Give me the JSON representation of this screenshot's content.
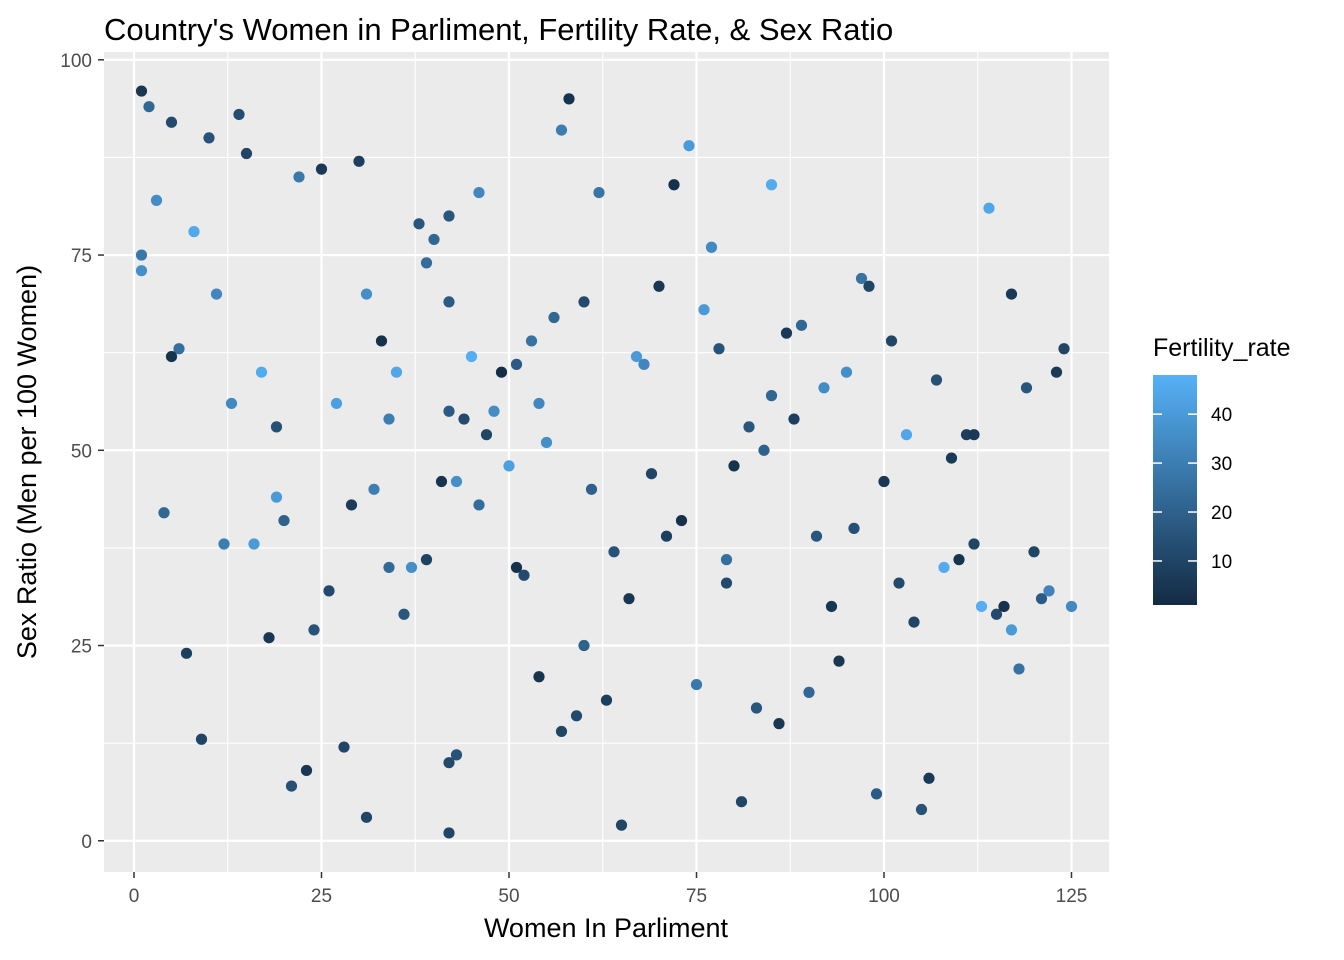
{
  "chart_data": {
    "type": "scatter",
    "title": "Country's Women in Parliment, Fertility Rate, & Sex Ratio",
    "xlabel": "Women In Parliment",
    "ylabel": "Sex Ratio (Men per 100 Women)",
    "xlim": [
      -4,
      130
    ],
    "ylim": [
      -4,
      101
    ],
    "x_ticks": [
      0,
      25,
      50,
      75,
      100,
      125
    ],
    "x_tick_labels": [
      "0",
      "25",
      "50",
      "75",
      "100",
      "125"
    ],
    "y_ticks": [
      0,
      25,
      50,
      75,
      100
    ],
    "y_tick_labels": [
      "0",
      "25",
      "50",
      "75",
      "100"
    ],
    "grid": true,
    "legend": {
      "title": "Fertility_rate",
      "placement": "right",
      "min": 1,
      "max": 48,
      "breaks": [
        10,
        20,
        30,
        40
      ],
      "break_labels": [
        "10",
        "20",
        "30",
        "40"
      ],
      "low_color": "#132B43",
      "high_color": "#56B1F7"
    },
    "points": [
      [
        1,
        96,
        5
      ],
      [
        2,
        94,
        22
      ],
      [
        5,
        92,
        12
      ],
      [
        10,
        90,
        15
      ],
      [
        14,
        93,
        13
      ],
      [
        15,
        88,
        10
      ],
      [
        25,
        86,
        6
      ],
      [
        30,
        87,
        8
      ],
      [
        1,
        75,
        28
      ],
      [
        1,
        73,
        36
      ],
      [
        3,
        82,
        35
      ],
      [
        8,
        78,
        45
      ],
      [
        11,
        70,
        33
      ],
      [
        6,
        63,
        25
      ],
      [
        5,
        62,
        4
      ],
      [
        22,
        85,
        28
      ],
      [
        17,
        60,
        46
      ],
      [
        13,
        56,
        34
      ],
      [
        19,
        53,
        14
      ],
      [
        4,
        42,
        22
      ],
      [
        12,
        38,
        30
      ],
      [
        16,
        38,
        40
      ],
      [
        19,
        44,
        40
      ],
      [
        20,
        41,
        20
      ],
      [
        7,
        24,
        8
      ],
      [
        9,
        13,
        10
      ],
      [
        18,
        26,
        5
      ],
      [
        21,
        7,
        14
      ],
      [
        23,
        9,
        5
      ],
      [
        24,
        27,
        15
      ],
      [
        26,
        32,
        12
      ],
      [
        28,
        12,
        10
      ],
      [
        29,
        43,
        7
      ],
      [
        27,
        56,
        42
      ],
      [
        31,
        70,
        36
      ],
      [
        33,
        64,
        3
      ],
      [
        35,
        60,
        44
      ],
      [
        34,
        54,
        30
      ],
      [
        32,
        45,
        30
      ],
      [
        34,
        35,
        23
      ],
      [
        37,
        35,
        36
      ],
      [
        36,
        29,
        16
      ],
      [
        31,
        3,
        10
      ],
      [
        38,
        79,
        16
      ],
      [
        40,
        77,
        22
      ],
      [
        39,
        74,
        24
      ],
      [
        42,
        80,
        16
      ],
      [
        42,
        69,
        18
      ],
      [
        42,
        55,
        18
      ],
      [
        44,
        54,
        12
      ],
      [
        41,
        46,
        4
      ],
      [
        43,
        46,
        36
      ],
      [
        39,
        36,
        9
      ],
      [
        42,
        10,
        12
      ],
      [
        43,
        11,
        15
      ],
      [
        42,
        1,
        10
      ],
      [
        46,
        83,
        33
      ],
      [
        45,
        62,
        47
      ],
      [
        48,
        55,
        35
      ],
      [
        47,
        52,
        10
      ],
      [
        49,
        60,
        2
      ],
      [
        51,
        61,
        18
      ],
      [
        50,
        48,
        42
      ],
      [
        46,
        43,
        24
      ],
      [
        51,
        35,
        3
      ],
      [
        52,
        34,
        12
      ],
      [
        53,
        64,
        26
      ],
      [
        56,
        67,
        22
      ],
      [
        54,
        56,
        33
      ],
      [
        55,
        51,
        36
      ],
      [
        57,
        91,
        30
      ],
      [
        58,
        95,
        4
      ],
      [
        60,
        69,
        12
      ],
      [
        61,
        45,
        20
      ],
      [
        64,
        37,
        15
      ],
      [
        66,
        31,
        5
      ],
      [
        62,
        83,
        27
      ],
      [
        60,
        25,
        20
      ],
      [
        54,
        21,
        4
      ],
      [
        57,
        14,
        10
      ],
      [
        59,
        16,
        12
      ],
      [
        63,
        18,
        8
      ],
      [
        65,
        2,
        10
      ],
      [
        67,
        62,
        40
      ],
      [
        68,
        61,
        33
      ],
      [
        69,
        47,
        10
      ],
      [
        71,
        39,
        8
      ],
      [
        73,
        41,
        3
      ],
      [
        70,
        71,
        5
      ],
      [
        72,
        84,
        3
      ],
      [
        74,
        89,
        40
      ],
      [
        76,
        68,
        40
      ],
      [
        77,
        76,
        34
      ],
      [
        78,
        63,
        15
      ],
      [
        80,
        48,
        4
      ],
      [
        79,
        36,
        25
      ],
      [
        79,
        33,
        12
      ],
      [
        75,
        20,
        28
      ],
      [
        81,
        5,
        10
      ],
      [
        83,
        17,
        16
      ],
      [
        86,
        15,
        5
      ],
      [
        82,
        53,
        16
      ],
      [
        84,
        50,
        20
      ],
      [
        85,
        57,
        22
      ],
      [
        85,
        84,
        46
      ],
      [
        87,
        65,
        6
      ],
      [
        88,
        54,
        8
      ],
      [
        89,
        66,
        22
      ],
      [
        91,
        39,
        16
      ],
      [
        92,
        58,
        35
      ],
      [
        93,
        30,
        5
      ],
      [
        95,
        60,
        36
      ],
      [
        96,
        40,
        14
      ],
      [
        97,
        72,
        26
      ],
      [
        98,
        71,
        10
      ],
      [
        94,
        23,
        5
      ],
      [
        90,
        19,
        22
      ],
      [
        99,
        6,
        18
      ],
      [
        101,
        64,
        10
      ],
      [
        100,
        46,
        5
      ],
      [
        103,
        52,
        44
      ],
      [
        102,
        33,
        12
      ],
      [
        104,
        28,
        10
      ],
      [
        107,
        59,
        14
      ],
      [
        106,
        8,
        6
      ],
      [
        105,
        4,
        15
      ],
      [
        108,
        35,
        46
      ],
      [
        109,
        49,
        6
      ],
      [
        110,
        36,
        4
      ],
      [
        111,
        52,
        8
      ],
      [
        112,
        52,
        6
      ],
      [
        112,
        38,
        10
      ],
      [
        114,
        81,
        44
      ],
      [
        113,
        30,
        47
      ],
      [
        115,
        29,
        12
      ],
      [
        116,
        30,
        3
      ],
      [
        117,
        27,
        40
      ],
      [
        117,
        70,
        6
      ],
      [
        118,
        22,
        26
      ],
      [
        119,
        58,
        16
      ],
      [
        120,
        37,
        10
      ],
      [
        121,
        31,
        18
      ],
      [
        122,
        32,
        32
      ],
      [
        123,
        60,
        6
      ],
      [
        124,
        63,
        10
      ],
      [
        125,
        30,
        34
      ]
    ]
  }
}
